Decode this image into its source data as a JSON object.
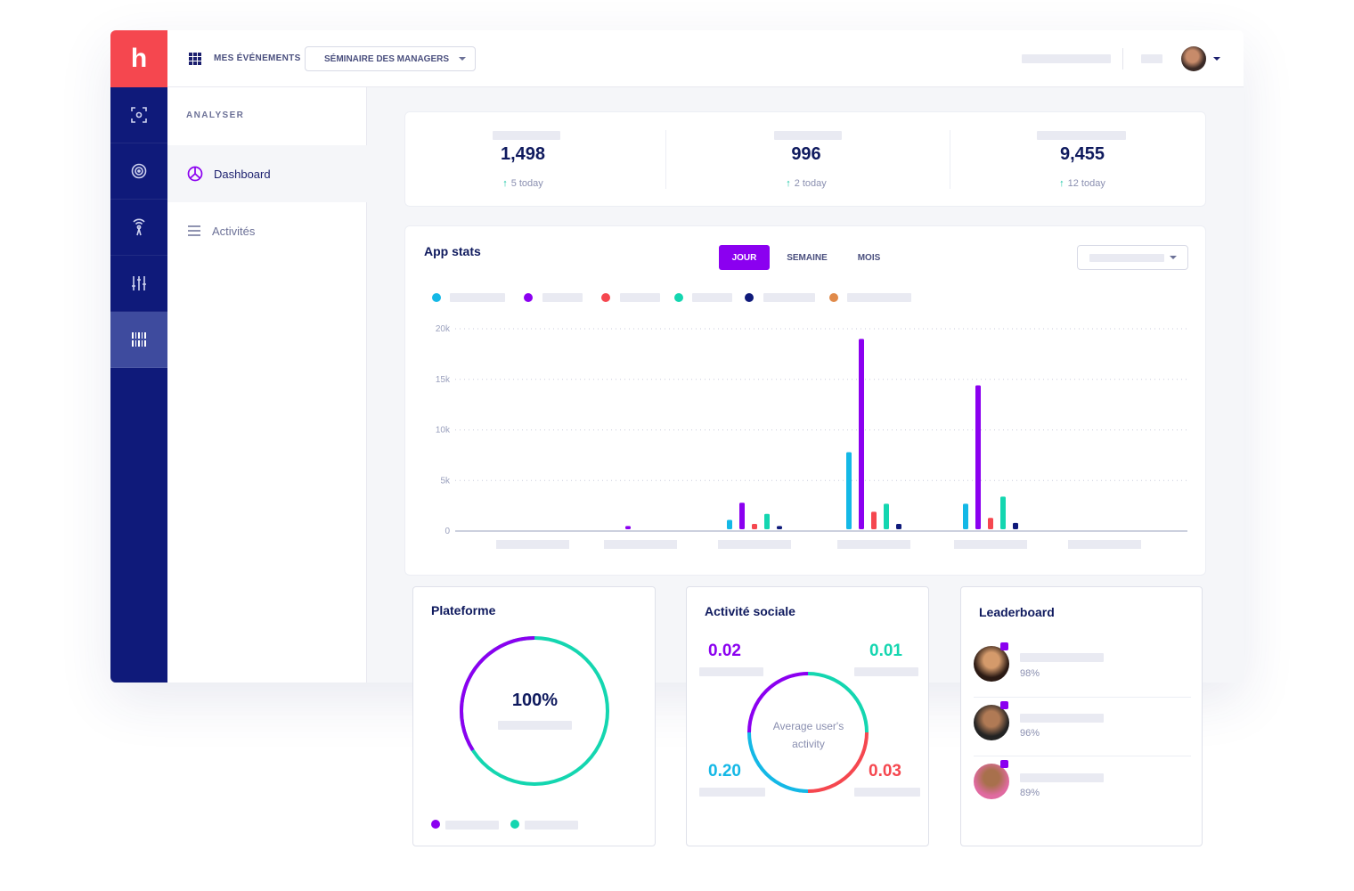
{
  "app": {
    "logo_letter": "h",
    "brand_color": "#f5474f",
    "rail_color": "#0f1a7a",
    "accent_color": "#8b00f0"
  },
  "rail": {
    "items": [
      {
        "icon": "scan-icon"
      },
      {
        "icon": "target-icon"
      },
      {
        "icon": "broadcast-icon"
      },
      {
        "icon": "sliders-icon"
      },
      {
        "icon": "barcode-icon",
        "active": true
      }
    ]
  },
  "topbar": {
    "events_link": "MES ÉVÉNEMENTS",
    "event_select": "SÉMINAIRE DES MANAGERS"
  },
  "subnav": {
    "section": "ANALYSER",
    "items": [
      {
        "label": "Dashboard",
        "icon": "pie-chart-icon",
        "active": true
      },
      {
        "label": "Activités",
        "icon": "list-icon",
        "active": false
      }
    ]
  },
  "stats": [
    {
      "value": "1,498",
      "delta": "5 today"
    },
    {
      "value": "996",
      "delta": "2 today"
    },
    {
      "value": "9,455",
      "delta": "12 today"
    }
  ],
  "app_stats": {
    "title": "App stats",
    "tabs": [
      "JOUR",
      "SEMAINE",
      "MOIS"
    ],
    "active_tab": "JOUR"
  },
  "chart_data": {
    "type": "bar",
    "yticks": [
      "0",
      "5k",
      "10k",
      "15k",
      "20k"
    ],
    "ylim": [
      0,
      20000
    ],
    "grid": true,
    "series_colors": [
      "#14b8e6",
      "#8b00f0",
      "#f5474f",
      "#14d6b0",
      "#0f1a7a",
      "#e08a4a"
    ],
    "groups": [
      {
        "values": [
          0,
          0,
          0,
          0,
          0
        ]
      },
      {
        "values": [
          0,
          500,
          0,
          0,
          0
        ]
      },
      {
        "values": [
          1100,
          2800,
          700,
          1700,
          500
        ]
      },
      {
        "values": [
          7800,
          19000,
          1900,
          2700,
          700
        ]
      },
      {
        "values": [
          2700,
          14400,
          1300,
          3400,
          800
        ]
      },
      {
        "values": [
          0,
          0,
          0,
          0,
          0
        ]
      }
    ]
  },
  "plateforme": {
    "title": "Plateforme",
    "center_value": "100%",
    "percent": 0.66,
    "colors": [
      "#14d6b0",
      "#8b00f0"
    ]
  },
  "social": {
    "title": "Activité sociale",
    "center_text": [
      "Average user's",
      "activity"
    ],
    "values": [
      {
        "value": "0.02",
        "color": "#8b00f0"
      },
      {
        "value": "0.01",
        "color": "#14d6b0"
      },
      {
        "value": "0.20",
        "color": "#14b8e6"
      },
      {
        "value": "0.03",
        "color": "#f5474f"
      }
    ]
  },
  "leaderboard": {
    "title": "Leaderboard",
    "rows": [
      {
        "pct": "98%"
      },
      {
        "pct": "96%"
      },
      {
        "pct": "89%"
      }
    ]
  }
}
